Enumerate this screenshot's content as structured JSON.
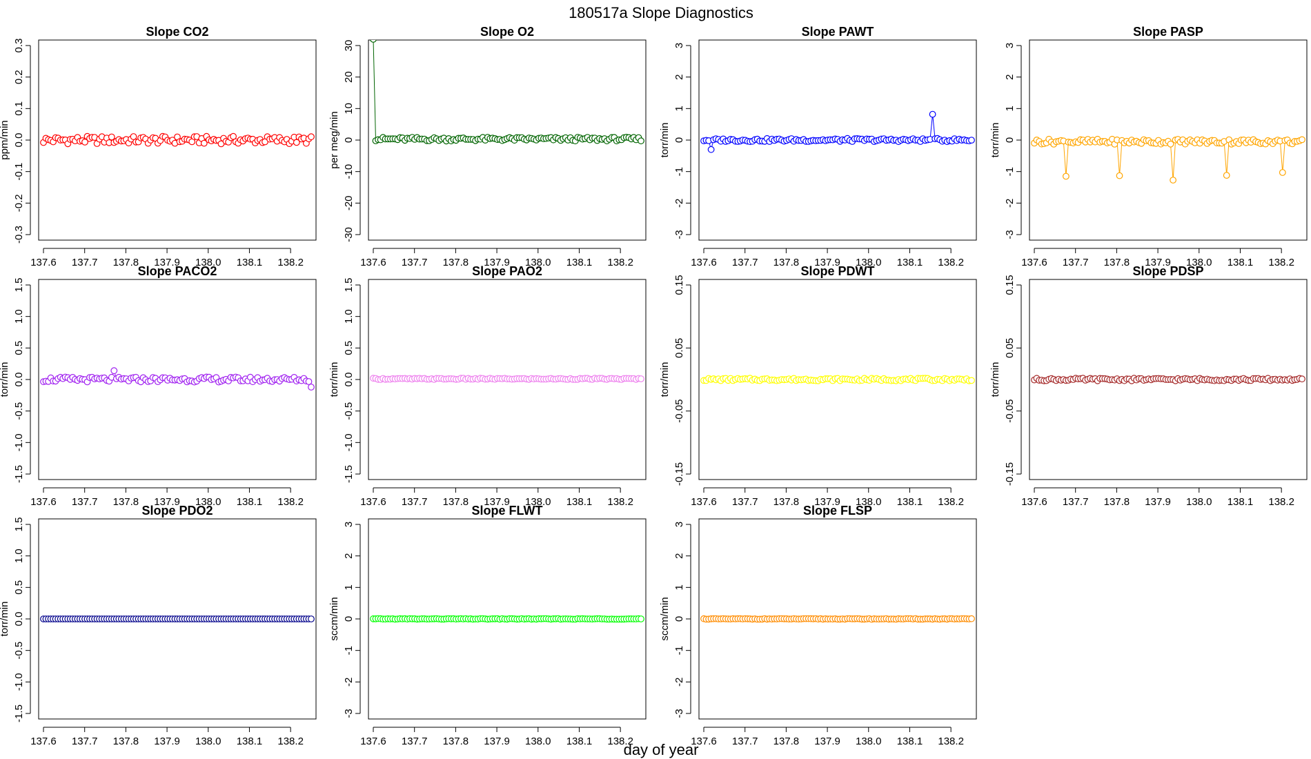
{
  "figure": {
    "title": "180517a   Slope Diagnostics",
    "xlabel": "day of year"
  },
  "chart_data": [
    {
      "type": "scatter",
      "title": "Slope CO2",
      "ylabel": "ppm/min",
      "color": "#ff0000",
      "xlim": [
        137.6,
        138.25
      ],
      "ylim": [
        -0.3,
        0.3
      ],
      "x_ticks": [
        "137.6",
        "137.7",
        "137.8",
        "137.9",
        "138.0",
        "138.1",
        "138.2"
      ],
      "y_ticks": [
        "-0.3",
        "-0.2",
        "-0.1",
        "0.0",
        "0.1",
        "0.2",
        "0.3"
      ],
      "baseline": 0.0,
      "noise": 0.012,
      "n": 111,
      "excursions": []
    },
    {
      "type": "scatter",
      "title": "Slope O2",
      "ylabel": "per meg/min",
      "color": "#006400",
      "xlim": [
        137.6,
        138.25
      ],
      "ylim": [
        -30,
        30
      ],
      "x_ticks": [
        "137.6",
        "137.7",
        "137.8",
        "137.9",
        "138.0",
        "138.1",
        "138.2"
      ],
      "y_ticks": [
        "-30",
        "-20",
        "-10",
        "0",
        "10",
        "20",
        "30"
      ],
      "baseline": 0.3,
      "noise": 0.6,
      "n": 111,
      "excursions": [
        {
          "x": 137.6,
          "y": 32
        }
      ]
    },
    {
      "type": "scatter",
      "title": "Slope PAWT",
      "ylabel": "torr/min",
      "color": "#0000ff",
      "xlim": [
        137.6,
        138.25
      ],
      "ylim": [
        -3,
        3
      ],
      "x_ticks": [
        "137.6",
        "137.7",
        "137.8",
        "137.9",
        "138.0",
        "138.1",
        "138.2"
      ],
      "y_ticks": [
        "-3",
        "-2",
        "-1",
        "0",
        "1",
        "2",
        "3"
      ],
      "baseline": 0.0,
      "noise": 0.05,
      "n": 111,
      "excursions": [
        {
          "x": 137.62,
          "y": -0.3
        },
        {
          "x": 138.155,
          "y": 0.82
        }
      ]
    },
    {
      "type": "scatter",
      "title": "Slope PASP",
      "ylabel": "torr/min",
      "color": "#ffa500",
      "xlim": [
        137.6,
        138.25
      ],
      "ylim": [
        -3,
        3
      ],
      "x_ticks": [
        "137.6",
        "137.7",
        "137.8",
        "137.9",
        "138.0",
        "138.1",
        "138.2"
      ],
      "y_ticks": [
        "-3",
        "-2",
        "-1",
        "0",
        "1",
        "2",
        "3"
      ],
      "baseline": -0.05,
      "noise": 0.08,
      "n": 111,
      "excursions": [
        {
          "x": 137.678,
          "y": -1.15
        },
        {
          "x": 137.808,
          "y": -1.13
        },
        {
          "x": 137.935,
          "y": -1.27
        },
        {
          "x": 138.068,
          "y": -1.12
        },
        {
          "x": 138.2,
          "y": -1.03
        }
      ]
    },
    {
      "type": "scatter",
      "title": "Slope PACO2",
      "ylabel": "torr/min",
      "color": "#a020f0",
      "xlim": [
        137.6,
        138.25
      ],
      "ylim": [
        -1.5,
        1.5
      ],
      "x_ticks": [
        "137.6",
        "137.7",
        "137.8",
        "137.9",
        "138.0",
        "138.1",
        "138.2"
      ],
      "y_ticks": [
        "-1.5",
        "-1.0",
        "-0.5",
        "0.0",
        "0.5",
        "1.0",
        "1.5"
      ],
      "baseline": 0.0,
      "noise": 0.04,
      "n": 111,
      "excursions": [
        {
          "x": 137.77,
          "y": 0.14
        },
        {
          "x": 138.255,
          "y": -0.12
        }
      ]
    },
    {
      "type": "scatter",
      "title": "Slope PAO2",
      "ylabel": "torr/min",
      "color": "#ee82ee",
      "xlim": [
        137.6,
        138.25
      ],
      "ylim": [
        -1.5,
        1.5
      ],
      "x_ticks": [
        "137.6",
        "137.7",
        "137.8",
        "137.9",
        "138.0",
        "138.1",
        "138.2"
      ],
      "y_ticks": [
        "-1.5",
        "-1.0",
        "-0.5",
        "0.0",
        "0.5",
        "1.0",
        "1.5"
      ],
      "baseline": 0.01,
      "noise": 0.01,
      "n": 111,
      "excursions": []
    },
    {
      "type": "scatter",
      "title": "Slope PDWT",
      "ylabel": "torr/min",
      "color": "#ffff00",
      "xlim": [
        137.6,
        138.25
      ],
      "ylim": [
        -0.15,
        0.15
      ],
      "x_ticks": [
        "137.6",
        "137.7",
        "137.8",
        "137.9",
        "138.0",
        "138.1",
        "138.2"
      ],
      "y_ticks": [
        "-0.15",
        "-0.05",
        "0.05",
        "0.15"
      ],
      "baseline": 0.0,
      "noise": 0.002,
      "n": 111,
      "excursions": []
    },
    {
      "type": "scatter",
      "title": "Slope PDSP",
      "ylabel": "torr/min",
      "color": "#a52a2a",
      "xlim": [
        137.6,
        138.25
      ],
      "ylim": [
        -0.15,
        0.15
      ],
      "x_ticks": [
        "137.6",
        "137.7",
        "137.8",
        "137.9",
        "138.0",
        "138.1",
        "138.2"
      ],
      "y_ticks": [
        "-0.15",
        "-0.05",
        "0.05",
        "0.15"
      ],
      "baseline": 0.0,
      "noise": 0.002,
      "n": 111,
      "excursions": []
    },
    {
      "type": "scatter",
      "title": "Slope PDO2",
      "ylabel": "torr/min",
      "color": "#00008b",
      "xlim": [
        137.6,
        138.25
      ],
      "ylim": [
        -1.5,
        1.5
      ],
      "x_ticks": [
        "137.6",
        "137.7",
        "137.8",
        "137.9",
        "138.0",
        "138.1",
        "138.2"
      ],
      "y_ticks": [
        "-1.5",
        "-1.0",
        "-0.5",
        "0.0",
        "0.5",
        "1.0",
        "1.5"
      ],
      "baseline": 0.0,
      "noise": 0.0,
      "n": 111,
      "excursions": []
    },
    {
      "type": "scatter",
      "title": "Slope FLWT",
      "ylabel": "sccm/min",
      "color": "#00ff00",
      "xlim": [
        137.6,
        138.25
      ],
      "ylim": [
        -3,
        3
      ],
      "x_ticks": [
        "137.6",
        "137.7",
        "137.8",
        "137.9",
        "138.0",
        "138.1",
        "138.2"
      ],
      "y_ticks": [
        "-3",
        "-2",
        "-1",
        "0",
        "1",
        "2",
        "3"
      ],
      "baseline": 0.0,
      "noise": 0.01,
      "n": 111,
      "excursions": []
    },
    {
      "type": "scatter",
      "title": "Slope FLSP",
      "ylabel": "sccm/min",
      "color": "#ff8c00",
      "xlim": [
        137.6,
        138.25
      ],
      "ylim": [
        -3,
        3
      ],
      "x_ticks": [
        "137.6",
        "137.7",
        "137.8",
        "137.9",
        "138.0",
        "138.1",
        "138.2"
      ],
      "y_ticks": [
        "-3",
        "-2",
        "-1",
        "0",
        "1",
        "2",
        "3"
      ],
      "baseline": 0.0,
      "noise": 0.01,
      "n": 111,
      "excursions": []
    }
  ]
}
